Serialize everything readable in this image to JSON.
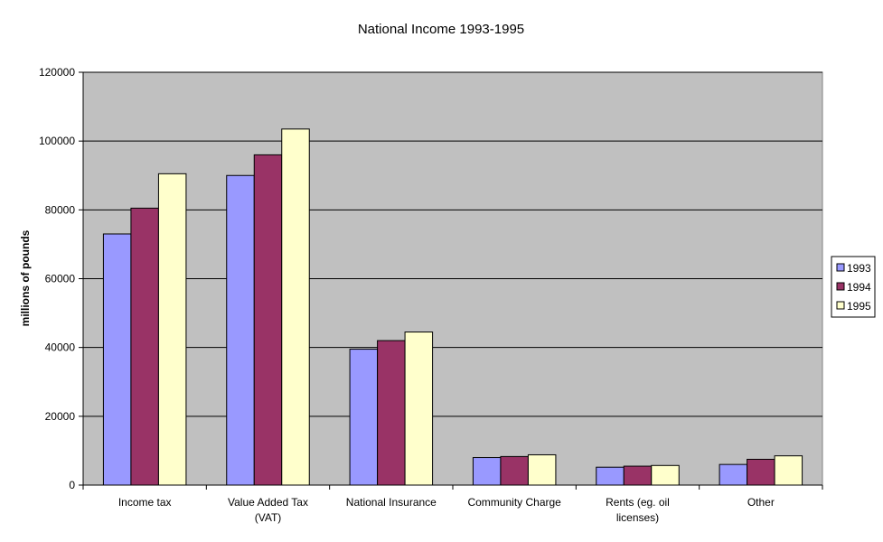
{
  "chart_data": {
    "type": "bar",
    "title": "National Income 1993-1995",
    "xlabel": "",
    "ylabel": "millions of pounds",
    "ylim": [
      0,
      120000
    ],
    "yticks": [
      0,
      20000,
      40000,
      60000,
      80000,
      100000,
      120000
    ],
    "grid": true,
    "legend_position": "right",
    "categories": [
      [
        "Income tax"
      ],
      [
        "Value Added Tax",
        "(VAT)"
      ],
      [
        "National Insurance"
      ],
      [
        "Community Charge"
      ],
      [
        "Rents (eg. oil",
        "licenses)"
      ],
      [
        "Other"
      ]
    ],
    "series": [
      {
        "name": "1993",
        "color": "#9999ff",
        "values": [
          73000,
          90000,
          39500,
          8000,
          5200,
          6000
        ]
      },
      {
        "name": "1994",
        "color": "#993366",
        "values": [
          80500,
          96000,
          42000,
          8300,
          5500,
          7500
        ]
      },
      {
        "name": "1995",
        "color": "#ffffcc",
        "values": [
          90500,
          103500,
          44500,
          8800,
          5700,
          8500
        ]
      }
    ],
    "plot_background": "#c0c0c0"
  }
}
